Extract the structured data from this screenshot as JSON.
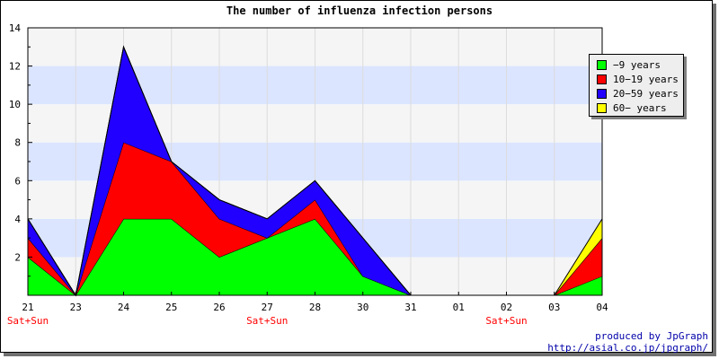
{
  "chart_data": {
    "type": "area",
    "stacked": true,
    "title": "The number of influenza infection persons",
    "categories": [
      "21",
      "23",
      "24",
      "25",
      "26",
      "27",
      "28",
      "30",
      "31",
      "01",
      "02",
      "03",
      "04"
    ],
    "weekend_markers": [
      {
        "category": "21",
        "label": "Sat+Sun"
      },
      {
        "category": "27",
        "label": "Sat+Sun"
      },
      {
        "category": "02",
        "label": "Sat+Sun"
      }
    ],
    "ylim": [
      0,
      14
    ],
    "yticks": [
      2,
      4,
      6,
      8,
      10,
      12,
      14
    ],
    "grid": true,
    "legend_position": "right",
    "series": [
      {
        "name": "−9 years",
        "color": "#00ff00",
        "values": [
          2,
          0,
          4,
          4,
          2,
          3,
          4,
          1,
          0,
          0,
          0,
          0,
          1
        ]
      },
      {
        "name": "10−19 years",
        "color": "#ff0000",
        "values": [
          1,
          0,
          4,
          3,
          2,
          0,
          1,
          0,
          0,
          0,
          0,
          0,
          2
        ]
      },
      {
        "name": "20−59 years",
        "color": "#2200ff",
        "values": [
          1,
          0,
          5,
          0,
          1,
          1,
          1,
          2,
          0,
          0,
          0,
          0,
          0
        ]
      },
      {
        "name": "60− years",
        "color": "#ffff00",
        "values": [
          0,
          0,
          0,
          0,
          0,
          0,
          0,
          0,
          0,
          0,
          0,
          0,
          1
        ]
      }
    ]
  },
  "credit": {
    "line1": "produced by JpGraph",
    "line2": "http://asial.co.jp/jpgraph/"
  },
  "colors": {
    "band_light": "#f5f5f5",
    "band_blue": "#dbe5ff",
    "weekend_label": "#ff0000",
    "credit": "#0000aa"
  }
}
